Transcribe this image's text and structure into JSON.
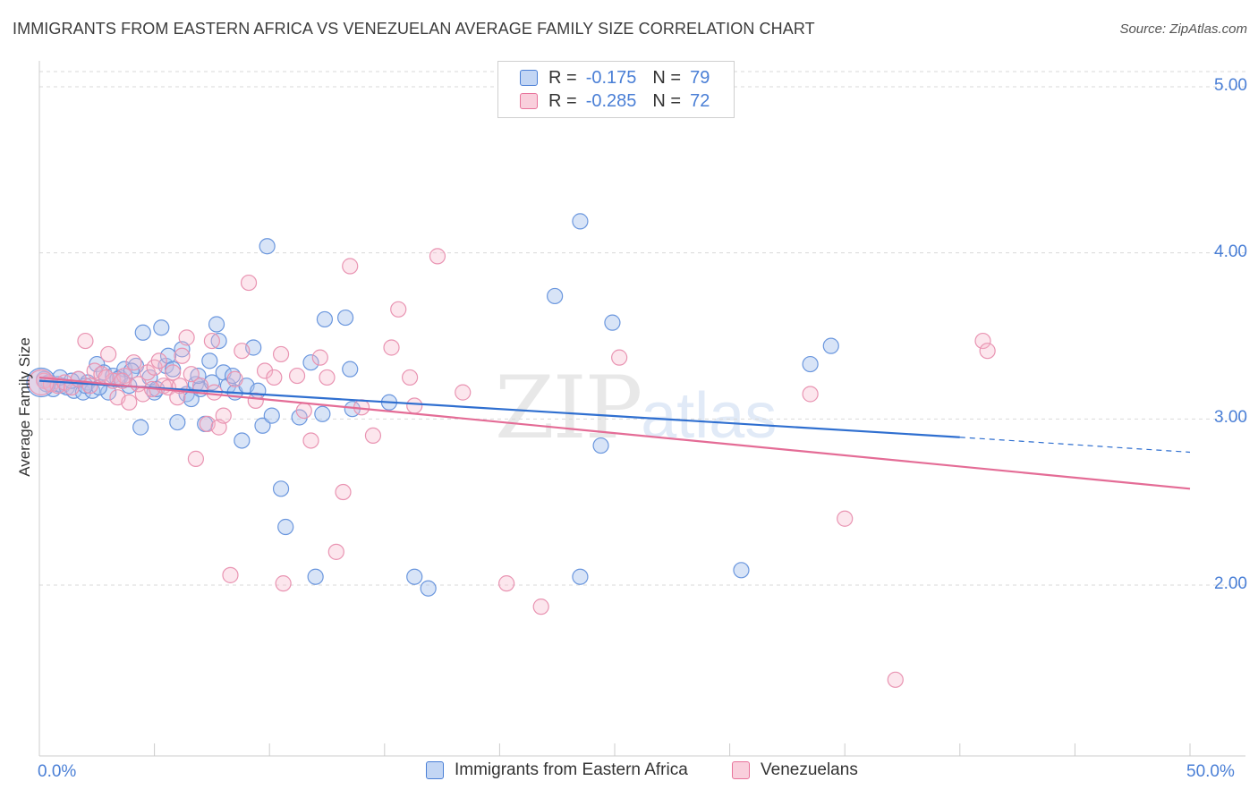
{
  "title": "IMMIGRANTS FROM EASTERN AFRICA VS VENEZUELAN AVERAGE FAMILY SIZE CORRELATION CHART",
  "source": "Source: ZipAtlas.com",
  "watermark": {
    "zip": "ZIP",
    "atlas": "atlas"
  },
  "colors": {
    "blue": "#4a7fd6",
    "blue_fill": "#a9c4ee",
    "blue_line": "#2f6fd0",
    "pink": "#e8739b",
    "pink_fill": "#f5b8cc",
    "pink_line": "#e46c96",
    "grid": "#dddddd"
  },
  "legend_top": {
    "rows": [
      {
        "r_label": "R =",
        "r_value": "-0.175",
        "n_label": "N =",
        "n_value": "79"
      },
      {
        "r_label": "R =",
        "r_value": "-0.285",
        "n_label": "N =",
        "n_value": "72"
      }
    ]
  },
  "legend_bottom": {
    "series1": "Immigrants from Eastern Africa",
    "series2": "Venezuelans"
  },
  "chart_data": {
    "type": "scatter",
    "title": "IMMIGRANTS FROM EASTERN AFRICA VS VENEZUELAN AVERAGE FAMILY SIZE CORRELATION CHART",
    "xlabel": "",
    "ylabel": "Average Family Size",
    "xlim": [
      0,
      50
    ],
    "ylim": [
      1.0,
      5.2
    ],
    "x_tick_labels": [
      "0.0%",
      "50.0%"
    ],
    "y_ticks": [
      2.0,
      3.0,
      4.0,
      5.0
    ],
    "y_tick_labels": [
      "2.00",
      "3.00",
      "4.00",
      "5.00"
    ],
    "grid": true,
    "legend_position": "top-center",
    "series": [
      {
        "name": "Immigrants from Eastern Africa",
        "color": "#4a7fd6",
        "trend": {
          "x": [
            0,
            40
          ],
          "y": [
            3.23,
            2.89
          ],
          "dashed_to": [
            50,
            2.8
          ]
        },
        "points": [
          [
            0.2,
            3.24
          ],
          [
            0.4,
            3.22
          ],
          [
            0.6,
            3.18
          ],
          [
            0.8,
            3.21
          ],
          [
            1.0,
            3.2
          ],
          [
            1.2,
            3.19
          ],
          [
            1.5,
            3.17
          ],
          [
            1.7,
            3.24
          ],
          [
            1.9,
            3.16
          ],
          [
            2.1,
            3.22
          ],
          [
            2.3,
            3.17
          ],
          [
            2.5,
            3.33
          ],
          [
            2.8,
            3.28
          ],
          [
            3.0,
            3.16
          ],
          [
            3.2,
            3.26
          ],
          [
            3.5,
            3.25
          ],
          [
            3.7,
            3.3
          ],
          [
            3.9,
            3.2
          ],
          [
            4.2,
            3.32
          ],
          [
            4.4,
            2.95
          ],
          [
            4.5,
            3.52
          ],
          [
            4.8,
            3.25
          ],
          [
            5.0,
            3.16
          ],
          [
            5.3,
            3.55
          ],
          [
            5.5,
            3.32
          ],
          [
            5.6,
            3.38
          ],
          [
            5.8,
            3.3
          ],
          [
            6.0,
            2.98
          ],
          [
            6.2,
            3.42
          ],
          [
            6.4,
            3.15
          ],
          [
            6.6,
            3.12
          ],
          [
            6.8,
            3.21
          ],
          [
            7.0,
            3.18
          ],
          [
            7.2,
            2.97
          ],
          [
            7.4,
            3.35
          ],
          [
            7.5,
            3.22
          ],
          [
            7.7,
            3.57
          ],
          [
            7.8,
            3.47
          ],
          [
            8.0,
            3.28
          ],
          [
            8.2,
            3.2
          ],
          [
            8.4,
            3.26
          ],
          [
            8.5,
            3.16
          ],
          [
            8.8,
            2.87
          ],
          [
            9.0,
            3.2
          ],
          [
            9.3,
            3.43
          ],
          [
            9.5,
            3.17
          ],
          [
            9.7,
            2.96
          ],
          [
            9.9,
            4.04
          ],
          [
            10.1,
            3.02
          ],
          [
            10.5,
            2.58
          ],
          [
            10.7,
            2.35
          ],
          [
            11.3,
            3.01
          ],
          [
            11.8,
            3.34
          ],
          [
            12.0,
            2.05
          ],
          [
            12.3,
            3.03
          ],
          [
            12.4,
            3.6
          ],
          [
            13.3,
            3.61
          ],
          [
            13.5,
            3.3
          ],
          [
            13.6,
            3.06
          ],
          [
            15.2,
            3.1
          ],
          [
            16.3,
            2.05
          ],
          [
            16.9,
            1.98
          ],
          [
            22.4,
            3.74
          ],
          [
            23.5,
            4.19
          ],
          [
            23.5,
            2.05
          ],
          [
            24.4,
            2.84
          ],
          [
            24.9,
            3.58
          ],
          [
            30.5,
            2.09
          ],
          [
            33.5,
            3.33
          ],
          [
            34.4,
            3.44
          ],
          [
            0.3,
            3.21
          ],
          [
            0.9,
            3.25
          ],
          [
            1.4,
            3.23
          ],
          [
            2.0,
            3.2
          ],
          [
            2.6,
            3.19
          ],
          [
            3.4,
            3.24
          ],
          [
            4.0,
            3.29
          ],
          [
            5.1,
            3.18
          ],
          [
            6.9,
            3.26
          ]
        ]
      },
      {
        "name": "Venezuelans",
        "color": "#e8739b",
        "trend": {
          "x": [
            0,
            50
          ],
          "y": [
            3.25,
            2.58
          ]
        },
        "points": [
          [
            0.2,
            3.23
          ],
          [
            0.5,
            3.21
          ],
          [
            0.8,
            3.2
          ],
          [
            1.1,
            3.22
          ],
          [
            1.4,
            3.19
          ],
          [
            1.7,
            3.24
          ],
          [
            2.0,
            3.47
          ],
          [
            2.2,
            3.2
          ],
          [
            2.4,
            3.29
          ],
          [
            2.7,
            3.27
          ],
          [
            3.0,
            3.39
          ],
          [
            3.2,
            3.23
          ],
          [
            3.4,
            3.13
          ],
          [
            3.7,
            3.26
          ],
          [
            3.9,
            3.1
          ],
          [
            4.1,
            3.34
          ],
          [
            4.3,
            3.21
          ],
          [
            4.5,
            3.15
          ],
          [
            4.7,
            3.28
          ],
          [
            5.0,
            3.31
          ],
          [
            5.2,
            3.35
          ],
          [
            5.4,
            3.2
          ],
          [
            5.6,
            3.19
          ],
          [
            5.8,
            3.28
          ],
          [
            6.0,
            3.13
          ],
          [
            6.2,
            3.38
          ],
          [
            6.4,
            3.49
          ],
          [
            6.6,
            3.27
          ],
          [
            6.8,
            2.76
          ],
          [
            7.0,
            3.2
          ],
          [
            7.3,
            2.97
          ],
          [
            7.5,
            3.47
          ],
          [
            7.8,
            2.95
          ],
          [
            8.0,
            3.02
          ],
          [
            8.3,
            2.06
          ],
          [
            8.5,
            3.24
          ],
          [
            8.8,
            3.41
          ],
          [
            9.1,
            3.82
          ],
          [
            9.4,
            3.11
          ],
          [
            9.8,
            3.29
          ],
          [
            10.2,
            3.25
          ],
          [
            10.5,
            3.39
          ],
          [
            10.6,
            2.01
          ],
          [
            11.2,
            3.26
          ],
          [
            11.5,
            3.05
          ],
          [
            11.8,
            2.87
          ],
          [
            12.2,
            3.37
          ],
          [
            12.5,
            3.25
          ],
          [
            12.9,
            2.2
          ],
          [
            13.2,
            2.56
          ],
          [
            13.5,
            3.92
          ],
          [
            14.0,
            3.07
          ],
          [
            14.5,
            2.9
          ],
          [
            15.3,
            3.43
          ],
          [
            15.6,
            3.66
          ],
          [
            16.1,
            3.25
          ],
          [
            16.3,
            3.08
          ],
          [
            17.3,
            3.98
          ],
          [
            18.4,
            3.16
          ],
          [
            20.3,
            2.01
          ],
          [
            21.8,
            1.87
          ],
          [
            25.2,
            3.37
          ],
          [
            33.5,
            3.15
          ],
          [
            35.0,
            2.4
          ],
          [
            37.2,
            1.43
          ],
          [
            41.0,
            3.47
          ],
          [
            41.2,
            3.41
          ],
          [
            3.6,
            3.23
          ],
          [
            4.9,
            3.18
          ],
          [
            6.1,
            3.2
          ],
          [
            7.6,
            3.16
          ],
          [
            2.9,
            3.25
          ]
        ]
      }
    ]
  }
}
